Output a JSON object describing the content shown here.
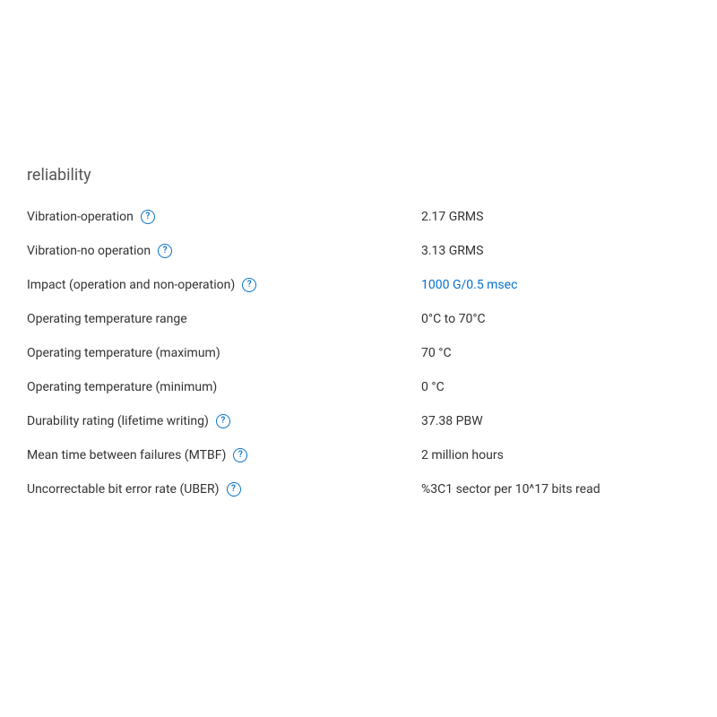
{
  "section": {
    "title": "reliability"
  },
  "rows": [
    {
      "label": "Vibration-operation",
      "has_help": true,
      "value": "2.17 GRMS",
      "is_link": false
    },
    {
      "label": "Vibration-no operation",
      "has_help": true,
      "value": "3.13 GRMS",
      "is_link": false
    },
    {
      "label": "Impact (operation and non-operation)",
      "has_help": true,
      "value": "1000 G/0.5 msec",
      "is_link": true
    },
    {
      "label": "Operating temperature range",
      "has_help": false,
      "value": "0°C to 70°C",
      "is_link": false
    },
    {
      "label": "Operating temperature (maximum)",
      "has_help": false,
      "value": "70 °C",
      "is_link": false
    },
    {
      "label": "Operating temperature (minimum)",
      "has_help": false,
      "value": "0 °C",
      "is_link": false
    },
    {
      "label": "Durability rating (lifetime writing)",
      "has_help": true,
      "value": "37.38 PBW",
      "is_link": false
    },
    {
      "label": "Mean time between failures (MTBF)",
      "has_help": true,
      "value": "2 million hours",
      "is_link": false
    },
    {
      "label": "Uncorrectable bit error rate (UBER)",
      "has_help": true,
      "value": "%3C1 sector per 10^17 bits read",
      "is_link": false
    }
  ],
  "colors": {
    "text": "#333333",
    "title": "#555555",
    "link": "#0672cb",
    "help_border": "#0672cb",
    "background": "#ffffff"
  },
  "typography": {
    "title_fontsize": 18,
    "row_fontsize": 14,
    "help_fontsize": 10
  },
  "help_glyph": "?"
}
